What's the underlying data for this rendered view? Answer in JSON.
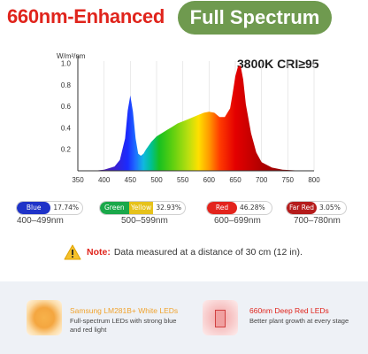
{
  "header": {
    "left_title": "660nm-Enhanced",
    "pill_title": "Full Spectrum",
    "spec_badge": "3800K CRI≥95"
  },
  "chart_data": {
    "type": "line",
    "ylabel": "W/m²/nm",
    "xlim": [
      350,
      800
    ],
    "ylim": [
      0,
      1.0
    ],
    "xticks": [
      "350",
      "400",
      "450",
      "500",
      "550",
      "600",
      "650",
      "700",
      "750",
      "800"
    ],
    "yticks": [
      "0.2",
      "0.4",
      "0.6",
      "0.8",
      "1.0"
    ],
    "fill": "visible-spectrum gradient",
    "series": [
      {
        "x": [
          380,
          400,
          420,
          430,
          440,
          445,
          450,
          455,
          460,
          465,
          470,
          475,
          480,
          490,
          500,
          510,
          520,
          530,
          540,
          550,
          560,
          570,
          580,
          590,
          600,
          610,
          620,
          630,
          640,
          645,
          650,
          655,
          660,
          665,
          670,
          680,
          690,
          700,
          720,
          740,
          760,
          780
        ],
        "y": [
          0.0,
          0.01,
          0.04,
          0.1,
          0.3,
          0.56,
          0.7,
          0.55,
          0.3,
          0.16,
          0.14,
          0.16,
          0.2,
          0.27,
          0.32,
          0.35,
          0.38,
          0.41,
          0.44,
          0.46,
          0.48,
          0.5,
          0.52,
          0.54,
          0.55,
          0.54,
          0.5,
          0.5,
          0.58,
          0.72,
          0.88,
          0.97,
          0.98,
          0.85,
          0.62,
          0.35,
          0.17,
          0.08,
          0.03,
          0.01,
          0.005,
          0.0
        ]
      }
    ]
  },
  "bands": [
    {
      "segments": [
        {
          "label": "Blue",
          "color": "#1f33c8"
        }
      ],
      "percent": "17.74%",
      "range": "400–499nm"
    },
    {
      "segments": [
        {
          "label": "Green",
          "color": "#1aa84a"
        },
        {
          "label": "Yellow",
          "color": "#e6c21b"
        }
      ],
      "percent": "32.93%",
      "range": "500–599nm"
    },
    {
      "segments": [
        {
          "label": "Red",
          "color": "#e3241d"
        }
      ],
      "percent": "46.28%",
      "range": "600–699nm"
    },
    {
      "segments": [
        {
          "label": "Far Red",
          "color": "#b51c1c"
        }
      ],
      "percent": "3.05%",
      "range": "700–780nm"
    }
  ],
  "note": {
    "label": "Note:",
    "text": "Data measured at a distance of 30 cm (12 in)."
  },
  "cards": [
    {
      "title": "Samsung LM281B+ White LEDs",
      "title_color": "#f0a32e",
      "description": "Full-spectrum LEDs with strong blue and red light"
    },
    {
      "title": "660nm Deep Red LEDs",
      "title_color": "#e0241c",
      "description": "Better plant growth at every stage"
    }
  ],
  "icons": [
    "warning-triangle-icon",
    "white-led-icon",
    "red-led-icon"
  ]
}
